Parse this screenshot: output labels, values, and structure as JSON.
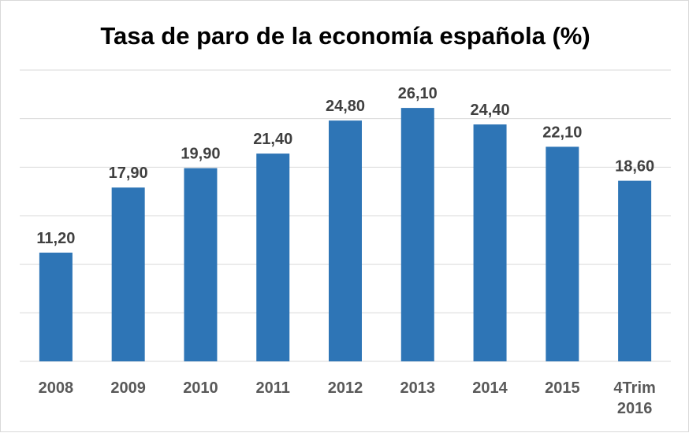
{
  "chart_data": {
    "type": "bar",
    "title": "Tasa de paro  de la economía española (%)",
    "categories": [
      "2008",
      "2009",
      "2010",
      "2011",
      "2012",
      "2013",
      "2014",
      "2015",
      "4Trim 2016"
    ],
    "values": [
      11.2,
      17.9,
      19.9,
      21.4,
      24.8,
      26.1,
      24.4,
      22.1,
      18.6
    ],
    "data_labels": [
      "11,20",
      "17,90",
      "19,90",
      "21,40",
      "24,80",
      "26,10",
      "24,40",
      "22,10",
      "18,60"
    ],
    "xlabel": "",
    "ylabel": "",
    "ylim": [
      0,
      30
    ],
    "ytick_step": 5,
    "grid": true,
    "show_y_tick_labels": false,
    "bar_color": "#2e75b6",
    "grid_color": "#d9d9d9"
  }
}
